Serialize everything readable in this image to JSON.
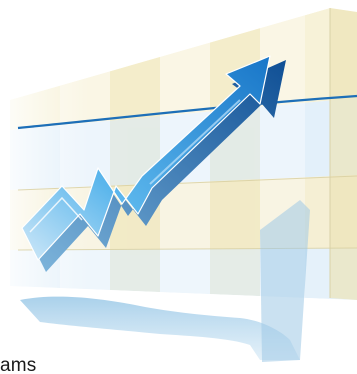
{
  "caption": {
    "visible_text": "ams"
  },
  "illustration": {
    "subject": "rising-arrow-over-striped-panel",
    "colors": {
      "panel_cream": "#f7f2d8",
      "panel_light_blue": "#e3f0fa",
      "panel_edge": "#d9d2a8",
      "horizontal_line": "#1d6fb8",
      "arrow_top": "#5bb6ec",
      "arrow_side": "#1a64b0",
      "shadow": "#9ec9e6"
    }
  }
}
